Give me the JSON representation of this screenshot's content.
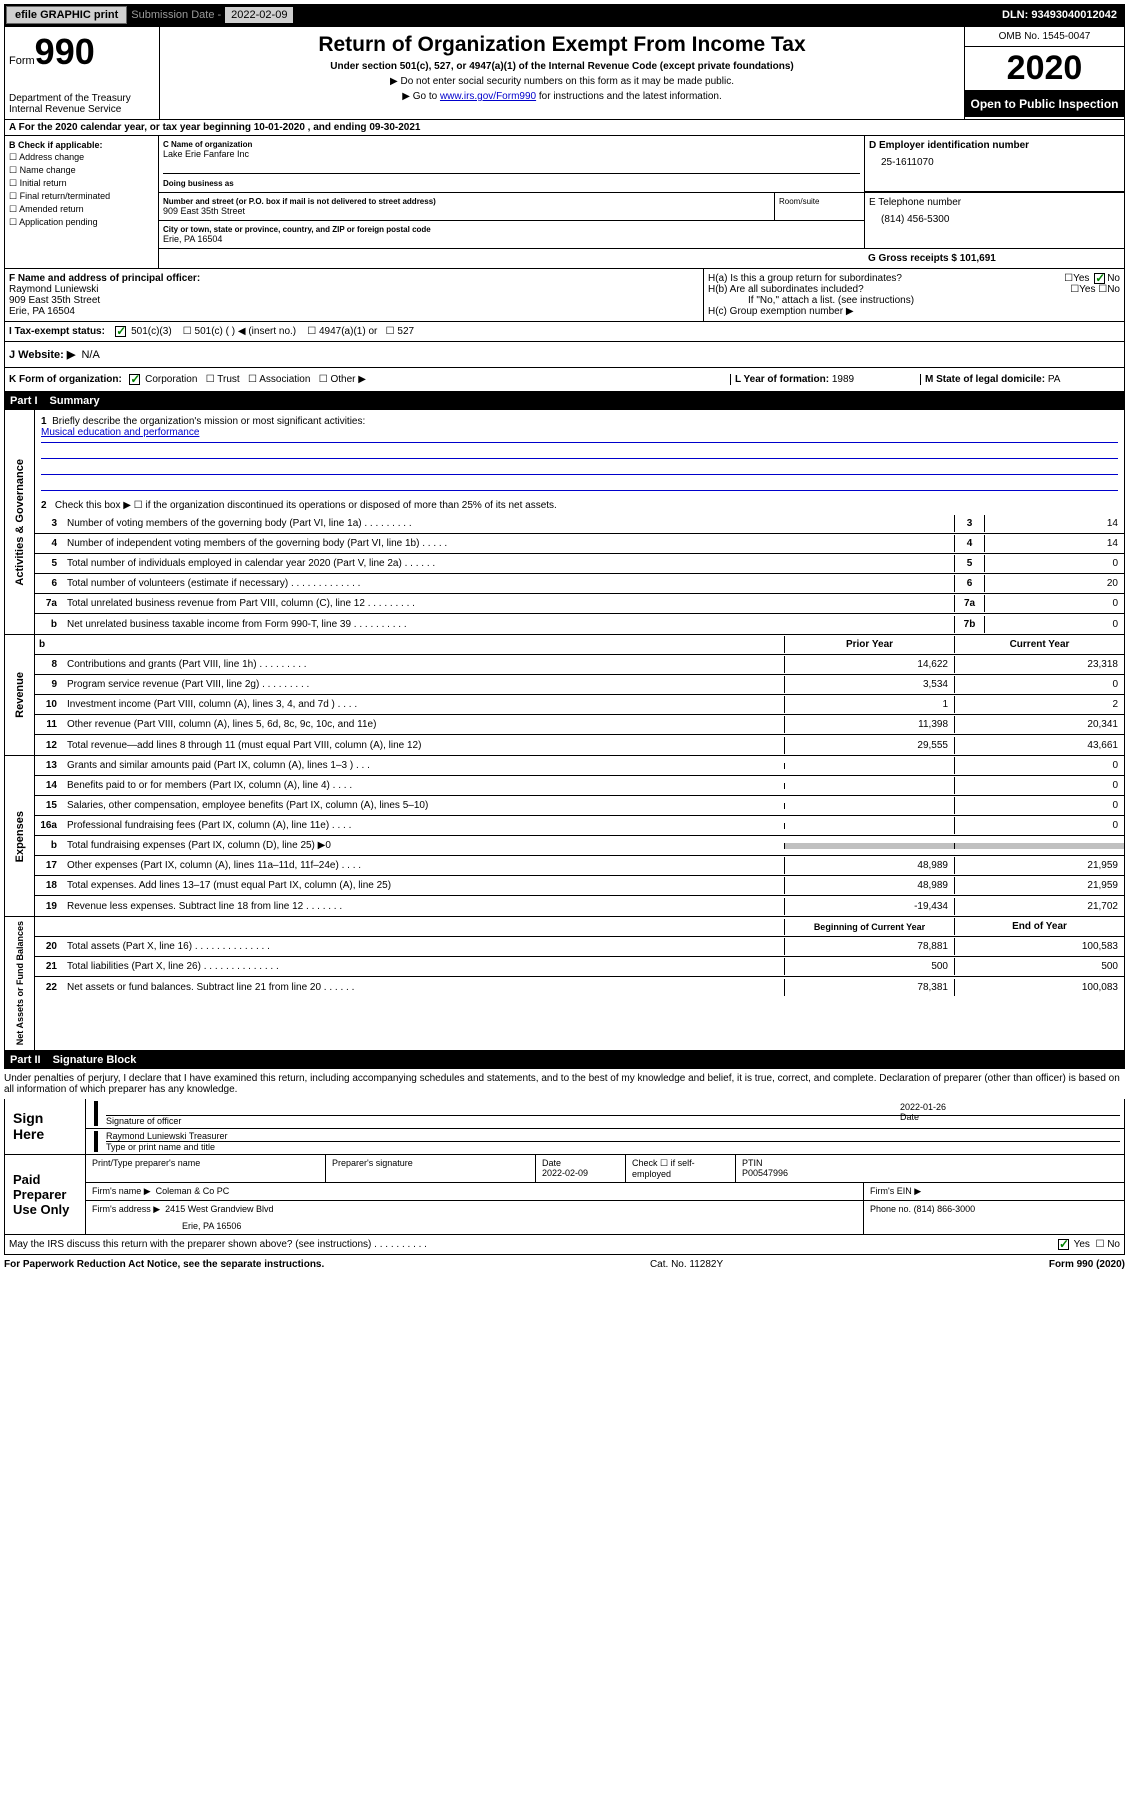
{
  "topbar": {
    "efile": "efile GRAPHIC print",
    "subdate_label": "Submission Date -",
    "subdate": "2022-02-09",
    "dln_label": "DLN:",
    "dln": "93493040012042"
  },
  "header": {
    "form_label": "Form",
    "form_num": "990",
    "dept": "Department of the Treasury\nInternal Revenue Service",
    "title": "Return of Organization Exempt From Income Tax",
    "subtitle": "Under section 501(c), 527, or 4947(a)(1) of the Internal Revenue Code (except private foundations)",
    "note1": "▶ Do not enter social security numbers on this form as it may be made public.",
    "note2_pre": "▶ Go to ",
    "note2_link": "www.irs.gov/Form990",
    "note2_post": " for instructions and the latest information.",
    "omb": "OMB No. 1545-0047",
    "year": "2020",
    "open": "Open to Public Inspection"
  },
  "row_a": "A  For the 2020 calendar year, or tax year beginning 10-01-2020     , and ending 09-30-2021",
  "col_b": {
    "header": "B Check if applicable:",
    "items": [
      "Address change",
      "Name change",
      "Initial return",
      "Final return/terminated",
      "Amended return",
      "Application pending"
    ]
  },
  "c": {
    "name_label": "C Name of organization",
    "name": "Lake Erie Fanfare Inc",
    "dba_label": "Doing business as",
    "street_label": "Number and street (or P.O. box if mail is not delivered to street address)",
    "street": "909 East 35th Street",
    "room_label": "Room/suite",
    "city_label": "City or town, state or province, country, and ZIP or foreign postal code",
    "city": "Erie, PA  16504"
  },
  "d": {
    "label": "D Employer identification number",
    "value": "25-1611070"
  },
  "e": {
    "label": "E Telephone number",
    "value": "(814) 456-5300"
  },
  "g": {
    "label": "G Gross receipts $",
    "value": "101,691"
  },
  "f": {
    "label": "F  Name and address of principal officer:",
    "name": "Raymond Luniewski",
    "street": "909 East 35th Street",
    "city": "Erie, PA  16504"
  },
  "h": {
    "a": "H(a)  Is this a group return for subordinates?",
    "b": "H(b)  Are all subordinates included?",
    "b_note": "If \"No,\" attach a list. (see instructions)",
    "c": "H(c)  Group exemption number ▶"
  },
  "i": {
    "label": "I   Tax-exempt status:",
    "opts": [
      "501(c)(3)",
      "501(c) (  ) ◀ (insert no.)",
      "4947(a)(1) or",
      "527"
    ]
  },
  "j": {
    "label": "J   Website: ▶",
    "value": "N/A"
  },
  "k": "K Form of organization:",
  "k_opts": [
    "Corporation",
    "Trust",
    "Association",
    "Other ▶"
  ],
  "l": {
    "label": "L Year of formation:",
    "value": "1989"
  },
  "m": {
    "label": "M State of legal domicile:",
    "value": "PA"
  },
  "part1": {
    "label": "Part I",
    "title": "Summary"
  },
  "activities": {
    "label": "Activities & Governance",
    "l1": "Briefly describe the organization's mission or most significant activities:",
    "mission": "Musical education and performance",
    "l2": "Check this box ▶ ☐  if the organization discontinued its operations or disposed of more than 25% of its net assets.",
    "rows": [
      {
        "n": "3",
        "t": "Number of voting members of the governing body (Part VI, line 1a)   .    .    .    .    .    .    .    .    .",
        "b": "3",
        "v": "14"
      },
      {
        "n": "4",
        "t": "Number of independent voting members of the governing body (Part VI, line 1b)    .    .    .    .    .",
        "b": "4",
        "v": "14"
      },
      {
        "n": "5",
        "t": "Total number of individuals employed in calendar year 2020 (Part V, line 2a)    .    .    .    .    .    .",
        "b": "5",
        "v": "0"
      },
      {
        "n": "6",
        "t": "Total number of volunteers (estimate if necessary)    .    .    .    .    .    .    .    .    .    .    .    .    .",
        "b": "6",
        "v": "20"
      },
      {
        "n": "7a",
        "t": "Total unrelated business revenue from Part VIII, column (C), line 12   .    .    .    .    .    .    .    .    .",
        "b": "7a",
        "v": "0"
      },
      {
        "n": "b",
        "t": "Net unrelated business taxable income from Form 990-T, line 39   .    .    .    .    .    .    .    .    .    .",
        "b": "7b",
        "v": "0"
      }
    ]
  },
  "revenue": {
    "label": "Revenue",
    "col1": "Prior Year",
    "col2": "Current Year",
    "rows": [
      {
        "n": "8",
        "t": "Contributions and grants (Part VIII, line 1h)    .    .    .    .    .    .    .    .    .",
        "p": "14,622",
        "c": "23,318"
      },
      {
        "n": "9",
        "t": "Program service revenue (Part VIII, line 2g)    .    .    .    .    .    .    .    .    .",
        "p": "3,534",
        "c": "0"
      },
      {
        "n": "10",
        "t": "Investment income (Part VIII, column (A), lines 3, 4, and 7d )    .    .    .    .",
        "p": "1",
        "c": "2"
      },
      {
        "n": "11",
        "t": "Other revenue (Part VIII, column (A), lines 5, 6d, 8c, 9c, 10c, and 11e)",
        "p": "11,398",
        "c": "20,341"
      },
      {
        "n": "12",
        "t": "Total revenue—add lines 8 through 11 (must equal Part VIII, column (A), line 12)",
        "p": "29,555",
        "c": "43,661"
      }
    ]
  },
  "expenses": {
    "label": "Expenses",
    "rows": [
      {
        "n": "13",
        "t": "Grants and similar amounts paid (Part IX, column (A), lines 1–3 )     .    .    .",
        "p": "",
        "c": "0"
      },
      {
        "n": "14",
        "t": "Benefits paid to or for members (Part IX, column (A), line 4)    .    .    .    .",
        "p": "",
        "c": "0"
      },
      {
        "n": "15",
        "t": "Salaries, other compensation, employee benefits (Part IX, column (A), lines 5–10)",
        "p": "",
        "c": "0"
      },
      {
        "n": "16a",
        "t": "Professional fundraising fees (Part IX, column (A), line 11e)    .    .    .    .",
        "p": "",
        "c": "0"
      },
      {
        "n": "b",
        "t": "Total fundraising expenses (Part IX, column (D), line 25) ▶0",
        "p": "shaded",
        "c": "shaded"
      },
      {
        "n": "17",
        "t": "Other expenses (Part IX, column (A), lines 11a–11d, 11f–24e)    .    .    .    .",
        "p": "48,989",
        "c": "21,959"
      },
      {
        "n": "18",
        "t": "Total expenses. Add lines 13–17 (must equal Part IX, column (A), line 25)",
        "p": "48,989",
        "c": "21,959"
      },
      {
        "n": "19",
        "t": "Revenue less expenses. Subtract line 18 from line 12   .    .    .    .    .    .    .",
        "p": "-19,434",
        "c": "21,702"
      }
    ]
  },
  "netassets": {
    "label": "Net Assets or Fund Balances",
    "col1": "Beginning of Current Year",
    "col2": "End of Year",
    "rows": [
      {
        "n": "20",
        "t": "Total assets (Part X, line 16)    .    .    .    .    .    .    .    .    .    .    .    .    .    .",
        "p": "78,881",
        "c": "100,583"
      },
      {
        "n": "21",
        "t": "Total liabilities (Part X, line 26)    .    .    .    .    .    .    .    .    .    .    .    .    .    .",
        "p": "500",
        "c": "500"
      },
      {
        "n": "22",
        "t": "Net assets or fund balances. Subtract line 21 from line 20   .    .    .    .    .    .",
        "p": "78,381",
        "c": "100,083"
      }
    ]
  },
  "part2": {
    "label": "Part II",
    "title": "Signature Block"
  },
  "perjury": "Under penalties of perjury, I declare that I have examined this return, including accompanying schedules and statements, and to the best of my knowledge and belief, it is true, correct, and complete. Declaration of preparer (other than officer) is based on all information of which preparer has any knowledge.",
  "sign": {
    "label": "Sign Here",
    "sig_of": "Signature of officer",
    "date_label": "Date",
    "date": "2022-01-26",
    "name": "Raymond Luniewski  Treasurer",
    "type_label": "Type or print name and title"
  },
  "paid": {
    "label": "Paid Preparer Use Only",
    "h1": "Print/Type preparer's name",
    "h2": "Preparer's signature",
    "h3": "Date",
    "h3v": "2022-02-09",
    "h4": "Check ☐ if self-employed",
    "h5": "PTIN",
    "h5v": "P00547996",
    "firm_label": "Firm's name    ▶",
    "firm": "Coleman & Co PC",
    "ein_label": "Firm's EIN ▶",
    "addr_label": "Firm's address ▶",
    "addr1": "2415 West Grandview Blvd",
    "addr2": "Erie, PA  16506",
    "phone_label": "Phone no.",
    "phone": "(814) 866-3000"
  },
  "irs_discuss": "May the IRS discuss this return with the preparer shown above? (see instructions)    .    .    .    .    .    .    .    .    .    .",
  "footer": {
    "left": "For Paperwork Reduction Act Notice, see the separate instructions.",
    "mid": "Cat. No. 11282Y",
    "right": "Form 990 (2020)"
  }
}
